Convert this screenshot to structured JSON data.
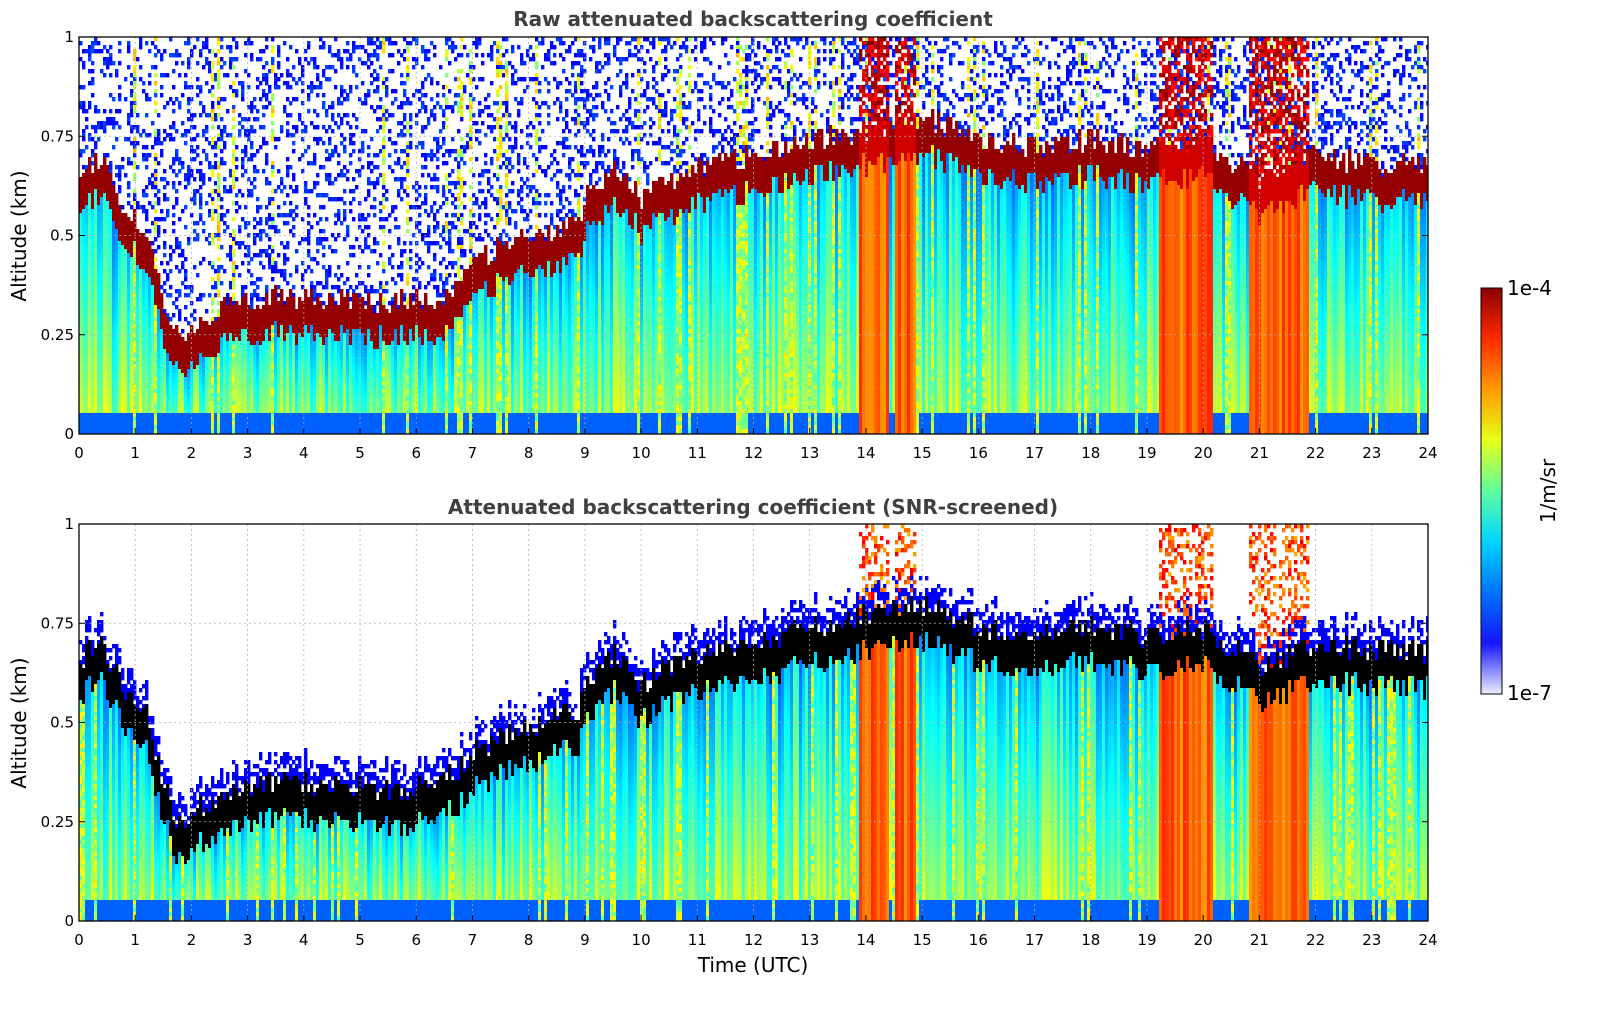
{
  "chart_data": [
    {
      "type": "heatmap",
      "title": "Raw attenuated backscattering coefficient",
      "xlabel": "",
      "ylabel": "Altitude (km)",
      "xlim": [
        0,
        24
      ],
      "ylim": [
        0,
        1
      ],
      "x_ticks": [
        "0",
        "1",
        "2",
        "3",
        "4",
        "5",
        "6",
        "7",
        "8",
        "9",
        "10",
        "11",
        "12",
        "13",
        "14",
        "15",
        "16",
        "17",
        "18",
        "19",
        "20",
        "21",
        "22",
        "23",
        "24"
      ],
      "y_ticks": [
        "0",
        "0.25",
        "0.5",
        "0.75",
        "1"
      ],
      "grid": true,
      "colorscale": "jet",
      "color_range": [
        "1e-7",
        "1e-4"
      ],
      "layer_top_km": [
        [
          0,
          0.62
        ],
        [
          0.3,
          0.68
        ],
        [
          0.5,
          0.65
        ],
        [
          0.8,
          0.55
        ],
        [
          1.2,
          0.5
        ],
        [
          1.5,
          0.32
        ],
        [
          1.8,
          0.22
        ],
        [
          2.5,
          0.3
        ],
        [
          3.5,
          0.33
        ],
        [
          4.5,
          0.32
        ],
        [
          5.5,
          0.31
        ],
        [
          6.5,
          0.33
        ],
        [
          7.0,
          0.4
        ],
        [
          7.5,
          0.45
        ],
        [
          8.0,
          0.47
        ],
        [
          8.5,
          0.5
        ],
        [
          8.9,
          0.51
        ],
        [
          9.0,
          0.58
        ],
        [
          9.5,
          0.65
        ],
        [
          10.0,
          0.58
        ],
        [
          10.5,
          0.62
        ],
        [
          11.0,
          0.65
        ],
        [
          12.0,
          0.68
        ],
        [
          13.0,
          0.72
        ],
        [
          14.0,
          0.75
        ],
        [
          15.0,
          0.78
        ],
        [
          16.0,
          0.72
        ],
        [
          17.0,
          0.7
        ],
        [
          18.0,
          0.72
        ],
        [
          19.0,
          0.7
        ],
        [
          20.0,
          0.72
        ],
        [
          21.0,
          0.62
        ],
        [
          22.0,
          0.68
        ],
        [
          23.0,
          0.66
        ],
        [
          24.0,
          0.66
        ]
      ],
      "intense_columns_hours": [
        [
          13.9,
          14.4
        ],
        [
          14.5,
          14.9
        ],
        [
          19.2,
          20.2
        ],
        [
          20.8,
          21.9
        ]
      ]
    },
    {
      "type": "heatmap",
      "title": "Attenuated backscattering coefficient (SNR-screened)",
      "xlabel": "Time (UTC)",
      "ylabel": "Altitude (km)",
      "xlim": [
        0,
        24
      ],
      "ylim": [
        0,
        1
      ],
      "x_ticks": [
        "0",
        "1",
        "2",
        "3",
        "4",
        "5",
        "6",
        "7",
        "8",
        "9",
        "10",
        "11",
        "12",
        "13",
        "14",
        "15",
        "16",
        "17",
        "18",
        "19",
        "20",
        "21",
        "22",
        "23",
        "24"
      ],
      "y_ticks": [
        "0",
        "0.25",
        "0.5",
        "0.75",
        "1"
      ],
      "grid": true,
      "colorscale": "jet",
      "color_range": [
        "1e-7",
        "1e-4"
      ],
      "screened_above_layer": true,
      "layer_top_km": [
        [
          0,
          0.62
        ],
        [
          0.3,
          0.68
        ],
        [
          0.5,
          0.65
        ],
        [
          0.8,
          0.55
        ],
        [
          1.2,
          0.5
        ],
        [
          1.5,
          0.32
        ],
        [
          1.8,
          0.22
        ],
        [
          2.5,
          0.3
        ],
        [
          3.5,
          0.33
        ],
        [
          4.5,
          0.32
        ],
        [
          5.5,
          0.31
        ],
        [
          6.5,
          0.33
        ],
        [
          7.0,
          0.4
        ],
        [
          7.5,
          0.45
        ],
        [
          8.0,
          0.47
        ],
        [
          8.5,
          0.5
        ],
        [
          8.9,
          0.51
        ],
        [
          9.0,
          0.58
        ],
        [
          9.5,
          0.65
        ],
        [
          10.0,
          0.58
        ],
        [
          10.5,
          0.62
        ],
        [
          11.0,
          0.65
        ],
        [
          12.0,
          0.68
        ],
        [
          13.0,
          0.72
        ],
        [
          14.0,
          0.75
        ],
        [
          15.0,
          0.78
        ],
        [
          16.0,
          0.72
        ],
        [
          17.0,
          0.7
        ],
        [
          18.0,
          0.72
        ],
        [
          19.0,
          0.7
        ],
        [
          20.0,
          0.72
        ],
        [
          21.0,
          0.62
        ],
        [
          22.0,
          0.68
        ],
        [
          23.0,
          0.66
        ],
        [
          24.0,
          0.66
        ]
      ],
      "intense_columns_hours": [
        [
          13.9,
          14.4
        ],
        [
          14.5,
          14.9
        ],
        [
          19.2,
          20.2
        ],
        [
          20.8,
          21.9
        ]
      ]
    }
  ],
  "colorbar": {
    "label": "1/m/sr",
    "max_label": "1e-4",
    "min_label": "1e-7",
    "colors": [
      "#eeeeff",
      "#1515ff",
      "#0073ff",
      "#00d4ff",
      "#5fffa0",
      "#e6ff19",
      "#ff9b00",
      "#ff2a00",
      "#8b0000"
    ]
  }
}
